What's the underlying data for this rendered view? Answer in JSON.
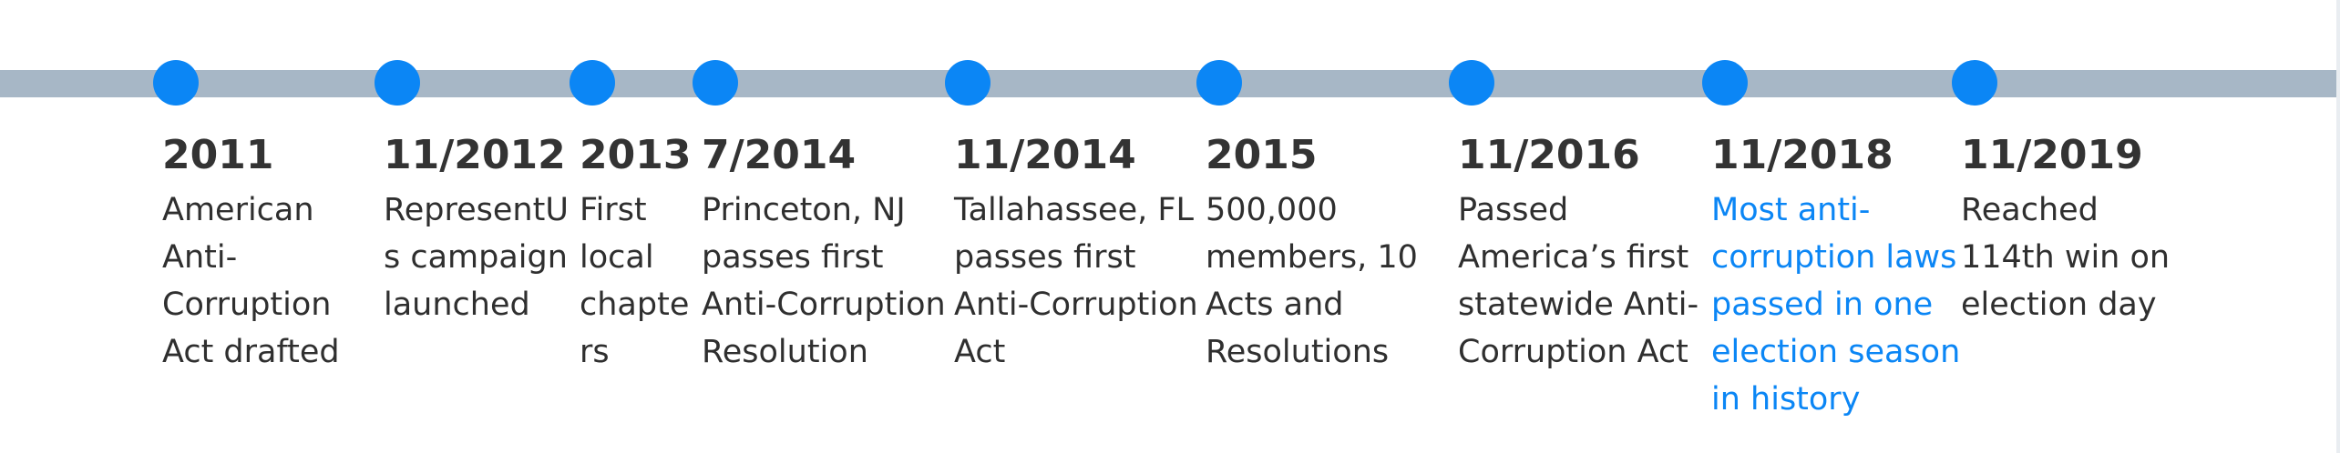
{
  "events": [
    {
      "year": "2011",
      "text": "American Anti-Corruption Act drafted",
      "highlight": false
    },
    {
      "year": "11/2012",
      "text": "RepresentUs campaign launched",
      "highlight": false
    },
    {
      "year": "2013",
      "text": "First local chapters",
      "highlight": false
    },
    {
      "year": "7/2014",
      "text": "Princeton, NJ passes first Anti-Corruption Resolution",
      "highlight": false
    },
    {
      "year": "11/2014",
      "text": "Tallahassee, FL passes first Anti-Corruption Act",
      "highlight": false
    },
    {
      "year": "2015",
      "text": "500,000 members, 10 Acts and Resolutions",
      "highlight": false
    },
    {
      "year": "11/2016",
      "text": "Passed America’s first statewide Anti-Corruption Act",
      "highlight": false
    },
    {
      "year": "11/2018",
      "text": "Most anti-corruption laws passed in one election season in history",
      "highlight": true
    },
    {
      "year": "11/2019",
      "text": "Reached 114th win on election day",
      "highlight": false
    }
  ],
  "colors": {
    "track": "#a7b7c6",
    "dot": "#0b86f5",
    "highlight_text": "#0b86f5",
    "year_text": "#333333",
    "body_text": "#2f2f2f"
  }
}
